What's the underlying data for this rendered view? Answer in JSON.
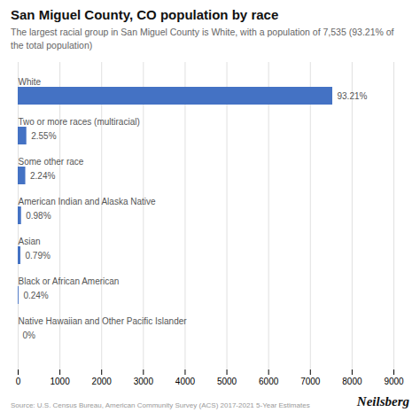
{
  "chart_data": {
    "type": "bar",
    "orientation": "horizontal",
    "title": "San Miguel County, CO population by race",
    "subtitle": "The largest racial group in San Miguel County is White, with a population of 7,535 (93.21% of\nthe total population)",
    "categories": [
      "White",
      "Two or more races (multiracial)",
      "Some other race",
      "American Indian and Alaska Native",
      "Asian",
      "Black or African American",
      "Native Hawaiian and Other Pacific Islander"
    ],
    "values": [
      7535,
      206,
      181,
      79,
      64,
      19,
      0
    ],
    "percentages": [
      "93.21%",
      "2.55%",
      "2.24%",
      "0.98%",
      "0.79%",
      "0.24%",
      "0%"
    ],
    "color": "#4472C4",
    "xlim": [
      0,
      9000
    ],
    "xticks": [
      0,
      1000,
      2000,
      3000,
      4000,
      5000,
      6000,
      7000,
      8000,
      9000
    ],
    "grid": true,
    "source": "Source: U.S. Census Bureau, American Community Survey (ACS) 2017-2021 5-Year Estimates",
    "brand": "Neilsberg"
  }
}
